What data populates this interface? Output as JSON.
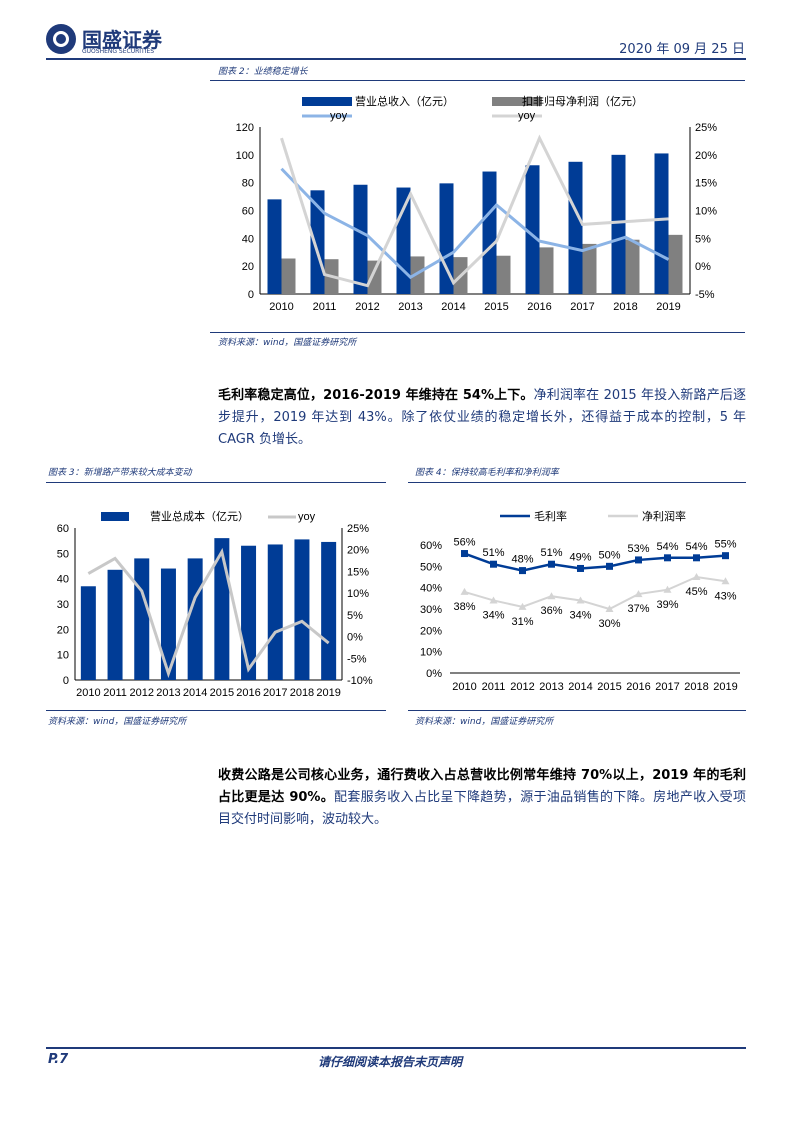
{
  "header": {
    "company": "国盛证券",
    "company_en": "GUOSHENG SECURITIES",
    "date": "2020 年 09 月 25 日"
  },
  "fig2": {
    "caption": "图表 2：业绩稳定增长",
    "source": "资料来源：wind，国盛证券研究所"
  },
  "para1": {
    "bold": "毛利率稳定高位，2016-2019 年维持在 54%上下。",
    "normal": "净利润率在 2015 年投入新路产后逐步提升，2019 年达到 43%。除了依仗业绩的稳定增长外，还得益于成本的控制，5 年 CAGR 负增长。"
  },
  "fig3": {
    "caption": "图表 3：新增路产带来较大成本变动",
    "source": "资料来源：wind，国盛证券研究所"
  },
  "fig4": {
    "caption": "图表 4：保持较高毛利率和净利润率",
    "source": "资料来源：wind，国盛证券研究所"
  },
  "para2": {
    "bold": "收费公路是公司核心业务，通行费收入占总营收比例常年维持 70%以上，2019 年的毛利占比更是达 90%。",
    "normal": "配套服务收入占比呈下降趋势，源于油品销售的下降。房地产收入受项目交付时间影响，波动较大。"
  },
  "footer": {
    "page": "P.7",
    "disclaimer": "请仔细阅读本报告末页声明"
  },
  "colors": {
    "navy": "#003c96",
    "gray": "#808080",
    "lightblue": "#8cb4e6",
    "lightgray": "#d4d4d4",
    "text": "#1f3a7a"
  },
  "chart_data": [
    {
      "type": "bar+line",
      "categories": [
        "2010",
        "2011",
        "2012",
        "2013",
        "2014",
        "2015",
        "2016",
        "2017",
        "2018",
        "2019"
      ],
      "ylim": [
        0,
        120
      ],
      "yticks": [
        "0",
        "20",
        "40",
        "60",
        "80",
        "100",
        "120"
      ],
      "y2lim": [
        -5,
        25
      ],
      "y2ticks": [
        "-5%",
        "0%",
        "5%",
        "10%",
        "15%",
        "20%",
        "25%"
      ],
      "legend": "top",
      "series": [
        {
          "name": "营业总收入（亿元）",
          "kind": "bar",
          "axis": "left",
          "color": "#003c96",
          "values": [
            68,
            74.5,
            78.5,
            76.5,
            79.5,
            88,
            92.5,
            95,
            100,
            101
          ]
        },
        {
          "name": "扣非归母净利润（亿元）",
          "kind": "bar",
          "axis": "left",
          "color": "#808080",
          "values": [
            25.5,
            25,
            24,
            27,
            26.5,
            27.5,
            33.5,
            36,
            39,
            42.5
          ]
        },
        {
          "name": "yoy",
          "kind": "line",
          "axis": "right",
          "color": "#8cb4e6",
          "values": [
            17.5,
            9.5,
            5.5,
            -2,
            2.5,
            11,
            4.5,
            2.8,
            5.2,
            1.2
          ]
        },
        {
          "name": "yoy",
          "kind": "line",
          "axis": "right",
          "color": "#d4d4d4",
          "values": [
            23,
            -1.5,
            -3.5,
            13,
            -3,
            4.5,
            23,
            7.5,
            8,
            8.5
          ]
        }
      ]
    },
    {
      "type": "bar+line",
      "categories": [
        "2010",
        "2011",
        "2012",
        "2013",
        "2014",
        "2015",
        "2016",
        "2017",
        "2018",
        "2019"
      ],
      "ylim": [
        0,
        60
      ],
      "yticks": [
        "0",
        "10",
        "20",
        "30",
        "40",
        "50",
        "60"
      ],
      "y2lim": [
        -10,
        25
      ],
      "y2ticks": [
        "-10%",
        "-5%",
        "0%",
        "5%",
        "10%",
        "15%",
        "20%",
        "25%"
      ],
      "legend": "top",
      "series": [
        {
          "name": "营业总成本（亿元）",
          "kind": "bar",
          "axis": "left",
          "color": "#003c96",
          "values": [
            37,
            43.5,
            48,
            44,
            48,
            56,
            53,
            53.5,
            55.5,
            54.5
          ]
        },
        {
          "name": "yoy",
          "kind": "line",
          "axis": "right",
          "color": "#c8c8c8",
          "values": [
            14.5,
            18,
            10.5,
            -8.5,
            9,
            19.5,
            -7.5,
            1,
            3.5,
            -1.5
          ]
        }
      ]
    },
    {
      "type": "line",
      "categories": [
        "2010",
        "2011",
        "2012",
        "2013",
        "2014",
        "2015",
        "2016",
        "2017",
        "2018",
        "2019"
      ],
      "ylim": [
        0,
        60
      ],
      "yticks": [
        "0%",
        "10%",
        "20%",
        "30%",
        "40%",
        "50%",
        "60%"
      ],
      "legend": "top",
      "series": [
        {
          "name": "毛利率",
          "color": "#003c96",
          "values": [
            56,
            51,
            48,
            51,
            49,
            50,
            53,
            54,
            54,
            55
          ],
          "labels": [
            "56%",
            "51%",
            "48%",
            "51%",
            "49%",
            "50%",
            "53%",
            "54%",
            "54%",
            "55%"
          ]
        },
        {
          "name": "净利润率",
          "color": "#d4d4d4",
          "values": [
            38,
            34,
            31,
            36,
            34,
            30,
            37,
            39,
            45,
            43
          ],
          "labels": [
            "38%",
            "34%",
            "31%",
            "36%",
            "34%",
            "30%",
            "37%",
            "39%",
            "45%",
            "43%"
          ]
        }
      ]
    }
  ]
}
